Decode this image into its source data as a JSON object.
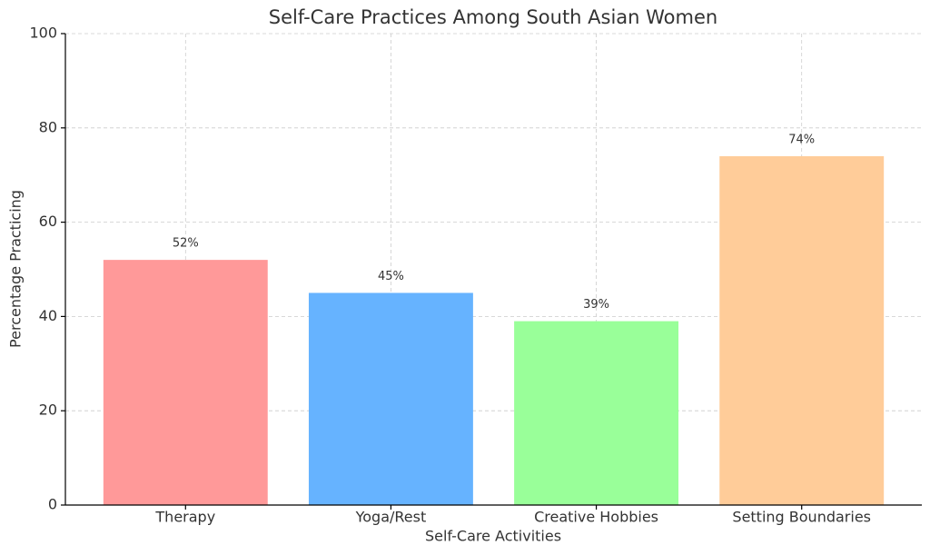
{
  "chart_data": {
    "type": "bar",
    "title": "Self-Care Practices Among South Asian Women",
    "x_label": "Self-Care Activities",
    "y_label": "Percentage Practicing",
    "categories": [
      "Therapy",
      "Yoga/Rest",
      "Creative Hobbies",
      "Setting Boundaries"
    ],
    "values": [
      52,
      45,
      39,
      74
    ],
    "value_labels": [
      "52%",
      "45%",
      "39%",
      "74%"
    ],
    "colors": [
      "#ff9999",
      "#66b3ff",
      "#99ff99",
      "#ffcc99"
    ],
    "ylim": [
      0,
      100
    ],
    "yticks": [
      0,
      20,
      40,
      60,
      80,
      100
    ],
    "grid": true
  }
}
